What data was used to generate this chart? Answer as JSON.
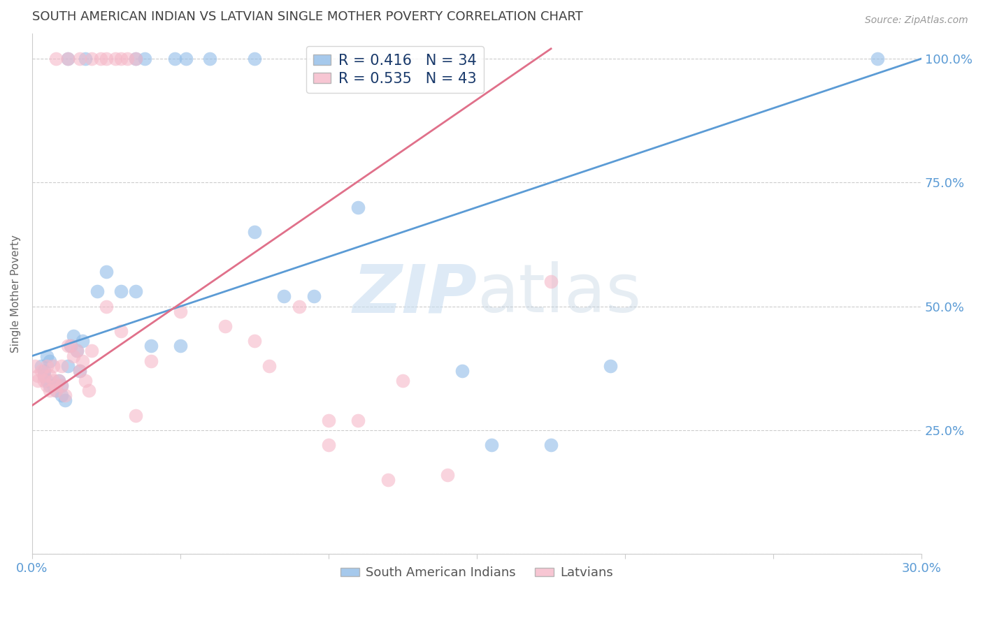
{
  "title": "SOUTH AMERICAN INDIAN VS LATVIAN SINGLE MOTHER POVERTY CORRELATION CHART",
  "source": "Source: ZipAtlas.com",
  "ylabel": "Single Mother Poverty",
  "yticks": [
    0.0,
    0.25,
    0.5,
    0.75,
    1.0
  ],
  "ytick_labels": [
    "",
    "25.0%",
    "50.0%",
    "75.0%",
    "100.0%"
  ],
  "xmin": 0.0,
  "xmax": 0.3,
  "ymin": 0.0,
  "ymax": 1.05,
  "blue_R": 0.416,
  "blue_N": 34,
  "pink_R": 0.535,
  "pink_N": 43,
  "legend_label_blue": "South American Indians",
  "legend_label_pink": "Latvians",
  "background_color": "#ffffff",
  "grid_color": "#cccccc",
  "blue_color": "#90bce8",
  "blue_line_color": "#5b9bd5",
  "pink_color": "#f5b8c8",
  "pink_line_color": "#e0708a",
  "title_color": "#404040",
  "axis_label_color": "#5b9bd5",
  "legend_text_color": "#1a3a6b",
  "blue_line_x": [
    0.0,
    0.3
  ],
  "blue_line_y": [
    0.4,
    1.0
  ],
  "pink_line_x": [
    0.0,
    0.175
  ],
  "pink_line_y": [
    0.3,
    1.02
  ],
  "blue_scatter_x": [
    0.003,
    0.004,
    0.004,
    0.005,
    0.005,
    0.006,
    0.006,
    0.007,
    0.008,
    0.009,
    0.01,
    0.01,
    0.011,
    0.012,
    0.013,
    0.014,
    0.015,
    0.016,
    0.017,
    0.022,
    0.025,
    0.03,
    0.035,
    0.04,
    0.05,
    0.075,
    0.085,
    0.095,
    0.11,
    0.145,
    0.155,
    0.175,
    0.195,
    0.285
  ],
  "blue_scatter_y": [
    0.38,
    0.37,
    0.36,
    0.35,
    0.4,
    0.34,
    0.39,
    0.34,
    0.33,
    0.35,
    0.34,
    0.32,
    0.31,
    0.38,
    0.42,
    0.44,
    0.41,
    0.37,
    0.43,
    0.53,
    0.57,
    0.53,
    0.53,
    0.42,
    0.42,
    0.65,
    0.52,
    0.52,
    0.7,
    0.37,
    0.22,
    0.22,
    0.38,
    1.0
  ],
  "pink_scatter_x": [
    0.001,
    0.002,
    0.002,
    0.003,
    0.004,
    0.004,
    0.005,
    0.005,
    0.006,
    0.006,
    0.007,
    0.007,
    0.008,
    0.008,
    0.009,
    0.01,
    0.01,
    0.011,
    0.012,
    0.013,
    0.014,
    0.015,
    0.016,
    0.017,
    0.018,
    0.019,
    0.02,
    0.025,
    0.03,
    0.035,
    0.04,
    0.05,
    0.065,
    0.075,
    0.08,
    0.09,
    0.1,
    0.1,
    0.11,
    0.12,
    0.125,
    0.14,
    0.175
  ],
  "pink_scatter_y": [
    0.38,
    0.35,
    0.36,
    0.37,
    0.36,
    0.35,
    0.38,
    0.34,
    0.33,
    0.36,
    0.35,
    0.38,
    0.34,
    0.33,
    0.35,
    0.38,
    0.34,
    0.32,
    0.42,
    0.42,
    0.4,
    0.41,
    0.37,
    0.39,
    0.35,
    0.33,
    0.41,
    0.5,
    0.45,
    0.28,
    0.39,
    0.49,
    0.46,
    0.43,
    0.38,
    0.5,
    0.22,
    0.27,
    0.27,
    0.15,
    0.35,
    0.16,
    0.55
  ],
  "top_pink_x": [
    0.008,
    0.012,
    0.016,
    0.02,
    0.023,
    0.025,
    0.028,
    0.03,
    0.032,
    0.035
  ],
  "top_pink_y": [
    1.0,
    1.0,
    1.0,
    1.0,
    1.0,
    1.0,
    1.0,
    1.0,
    1.0,
    1.0
  ],
  "top_blue_x": [
    0.012,
    0.018,
    0.035,
    0.038,
    0.048,
    0.052,
    0.06,
    0.075
  ],
  "top_blue_y": [
    1.0,
    1.0,
    1.0,
    1.0,
    1.0,
    1.0,
    1.0,
    1.0
  ]
}
